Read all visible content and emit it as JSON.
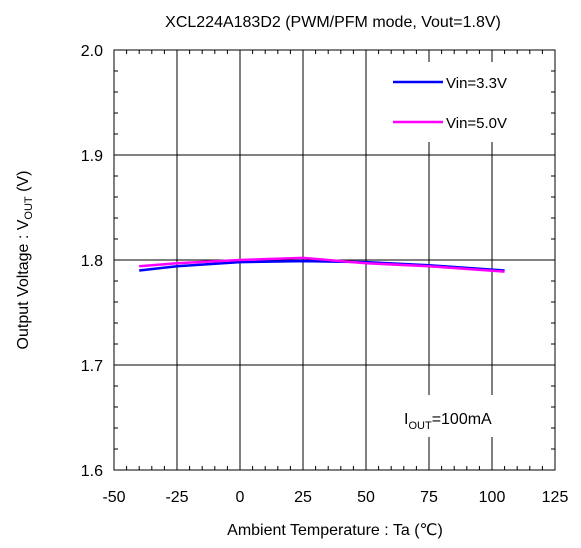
{
  "chart_data": {
    "type": "line",
    "title": "XCL224A183D2 (PWM/PFM mode, Vout=1.8V)",
    "xlabel": "Ambient Temperature : Ta (℃)",
    "ylabel": {
      "main": "Output Voltage : V",
      "sub": "OUT",
      "tail": " (V)"
    },
    "xlim": [
      -50,
      125
    ],
    "ylim": [
      1.6,
      2.0
    ],
    "xticks": [
      -50,
      -25,
      0,
      25,
      50,
      75,
      100,
      125
    ],
    "yticks": [
      1.6,
      1.7,
      1.8,
      1.9,
      2.0
    ],
    "ytick_labels": [
      "1.6",
      "1.7",
      "1.8",
      "1.9",
      "2.0"
    ],
    "grid": true,
    "legend_position": "top-right",
    "annotation": {
      "main": "I",
      "sub": "OUT",
      "tail": "=100mA"
    },
    "series": [
      {
        "name": "Vin=3.3V",
        "color": "#0000ff",
        "x": [
          -40,
          -25,
          0,
          25,
          50,
          75,
          105
        ],
        "y": [
          1.79,
          1.794,
          1.798,
          1.799,
          1.798,
          1.795,
          1.79
        ]
      },
      {
        "name": "Vin=5.0V",
        "color": "#ff00ff",
        "x": [
          -40,
          -25,
          0,
          25,
          50,
          75,
          105
        ],
        "y": [
          1.794,
          1.797,
          1.8,
          1.802,
          1.797,
          1.794,
          1.789
        ]
      }
    ]
  }
}
